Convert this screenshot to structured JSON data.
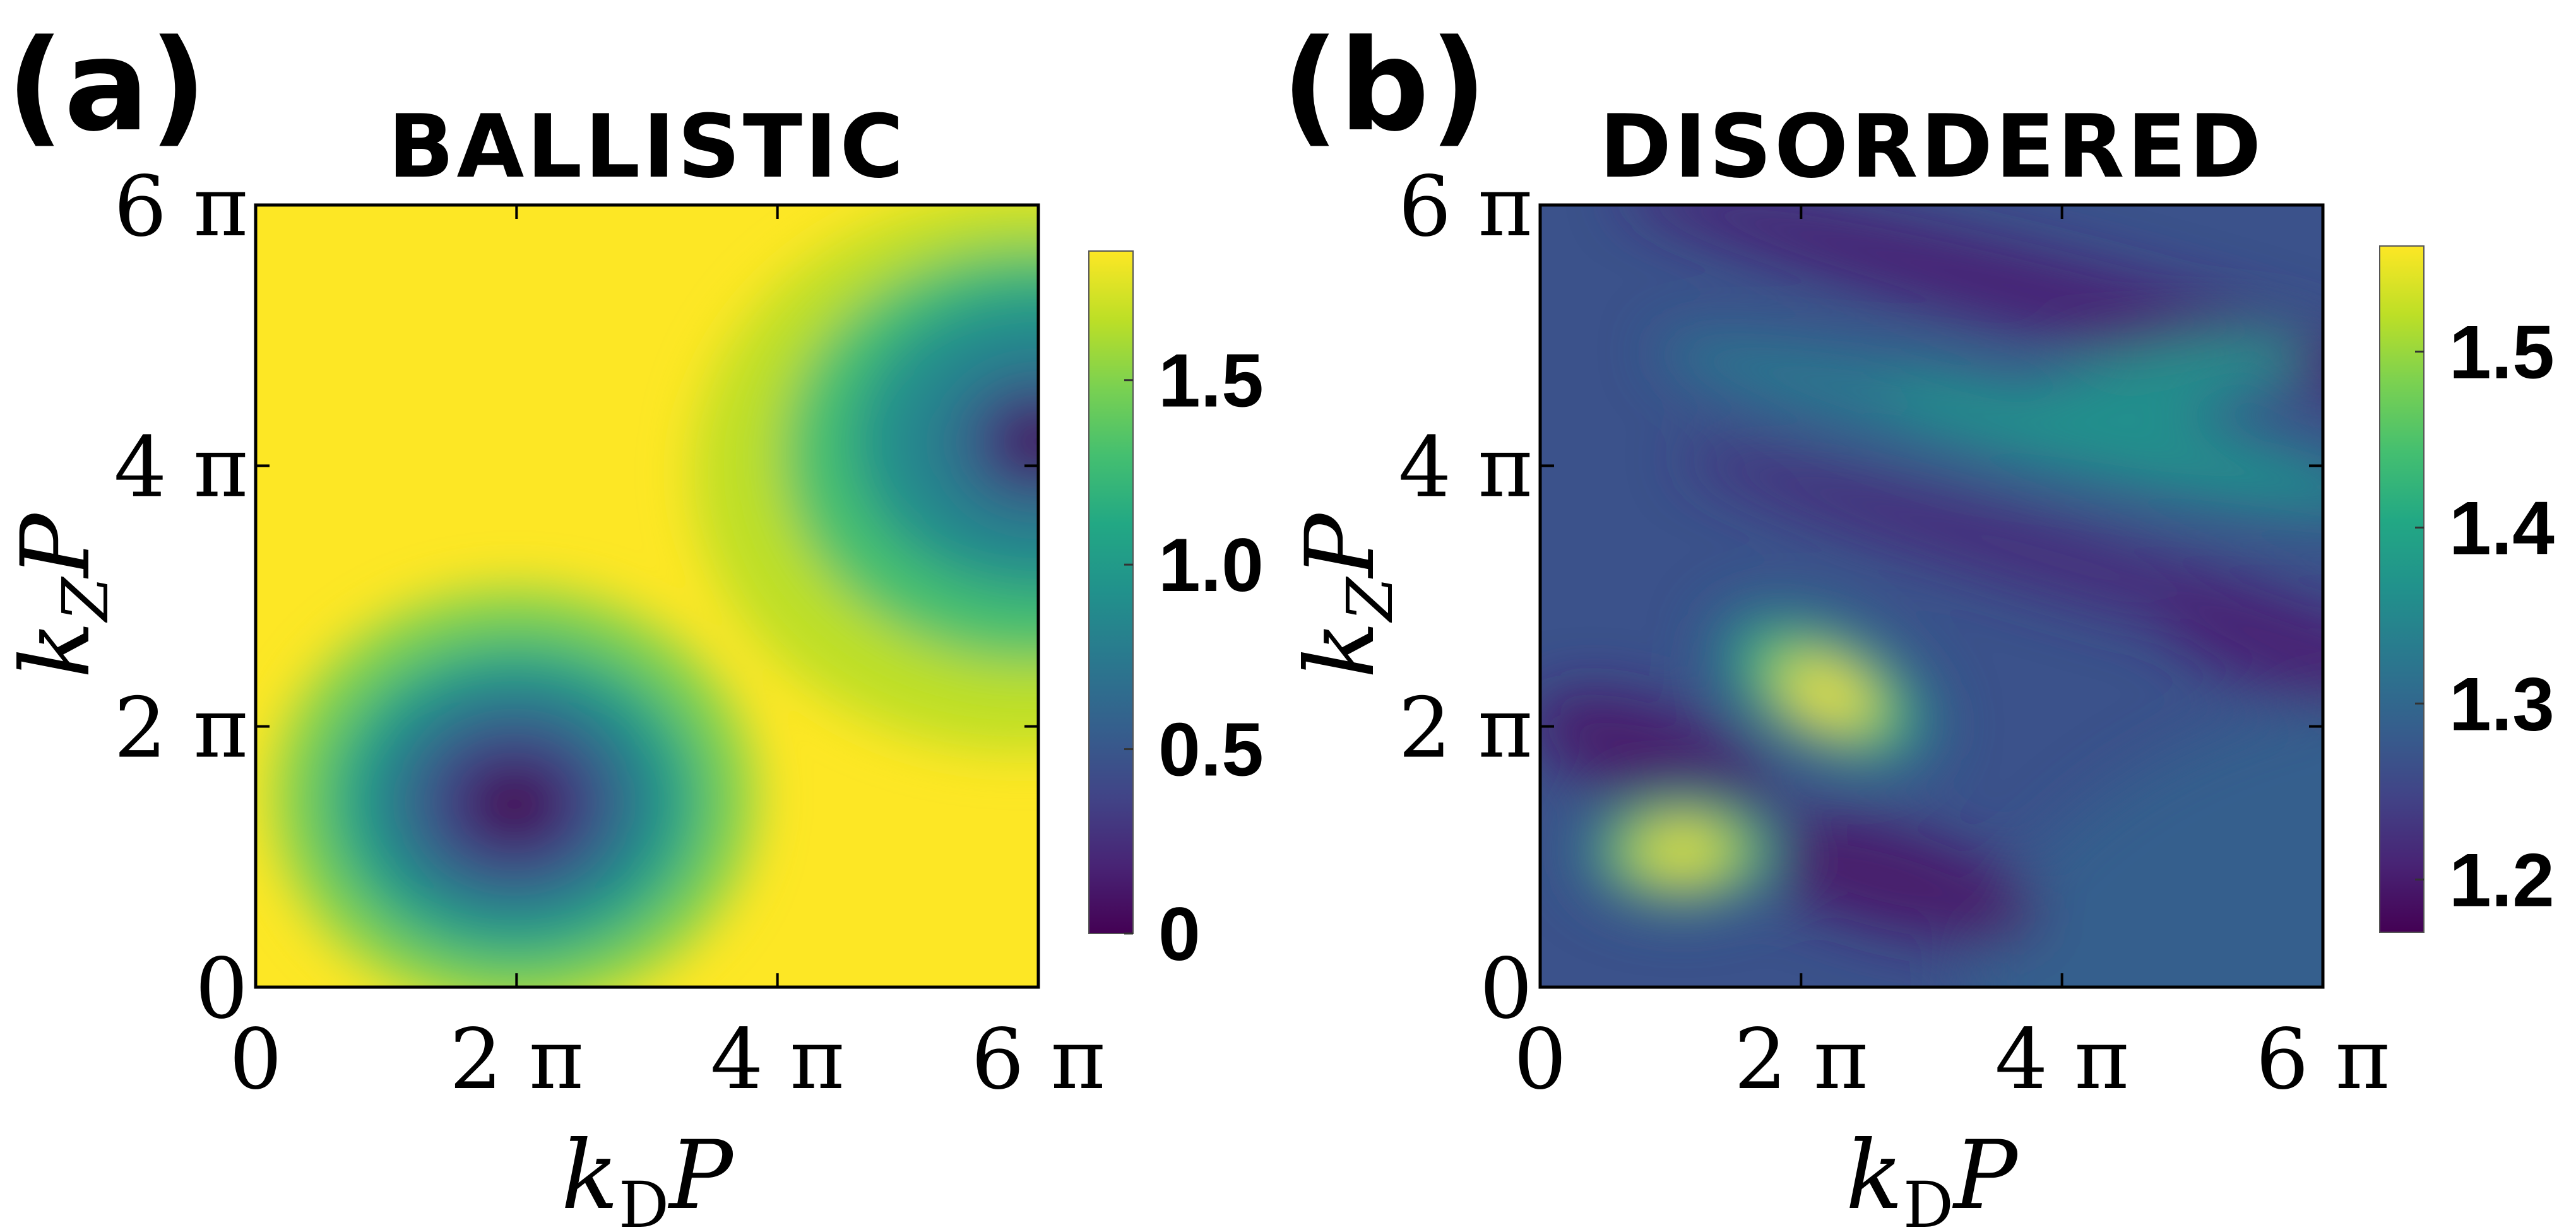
{
  "chart_data": [
    {
      "type": "heatmap",
      "panel_label": "(a)",
      "title": "BALLISTIC",
      "xlabel": {
        "base": "k",
        "sub": "D",
        "suffix": "P"
      },
      "ylabel": {
        "base": "k",
        "sub": "Z",
        "suffix": "P"
      },
      "xlim": [
        0,
        6
      ],
      "ylim": [
        0,
        6
      ],
      "x_unit": "π",
      "x_ticks": [
        0,
        2,
        4,
        6
      ],
      "y_ticks": [
        0,
        2,
        4,
        6
      ],
      "x_tick_labels": [
        "0",
        "2 π",
        "4 π",
        "6 π"
      ],
      "y_tick_labels": [
        "0",
        "2 π",
        "4 π",
        "6 π"
      ],
      "colormap": "viridis",
      "colorbar": {
        "range": [
          0,
          1.85
        ],
        "ticks": [
          0,
          0.5,
          1.0,
          1.5
        ],
        "tick_labels": [
          "0",
          "0.5",
          "1.0",
          "1.5"
        ]
      },
      "features": [
        {
          "kind": "minimum",
          "x": 2.0,
          "y": 1.4,
          "value": 0.0,
          "note": "dark well surrounded by teal ring"
        },
        {
          "kind": "minimum",
          "x": 6.0,
          "y": 4.2,
          "value": 0.05,
          "note": "dark region at right edge, inside teal band"
        },
        {
          "kind": "background",
          "value": 1.85,
          "note": "yellow plateau elsewhere"
        }
      ]
    },
    {
      "type": "heatmap",
      "panel_label": "(b)",
      "title": "DISORDERED",
      "xlabel": {
        "base": "k",
        "sub": "D",
        "suffix": "P"
      },
      "ylabel": {
        "base": "k",
        "sub": "Z",
        "suffix": "P"
      },
      "xlim": [
        0,
        6
      ],
      "ylim": [
        0,
        6
      ],
      "x_unit": "π",
      "x_ticks": [
        0,
        2,
        4,
        6
      ],
      "y_ticks": [
        0,
        2,
        4,
        6
      ],
      "x_tick_labels": [
        "0",
        "2 π",
        "4 π",
        "6 π"
      ],
      "y_tick_labels": [
        "0",
        "2 π",
        "4 π",
        "6 π"
      ],
      "colormap": "viridis",
      "colorbar": {
        "range": [
          1.17,
          1.56
        ],
        "ticks": [
          1.2,
          1.3,
          1.4,
          1.5
        ],
        "tick_labels": [
          "1.2",
          "1.3",
          "1.4",
          "1.5"
        ]
      },
      "features": [
        {
          "kind": "maximum",
          "x": 2.2,
          "y": 2.2,
          "value": 1.55,
          "note": "bright elongated lobe"
        },
        {
          "kind": "maximum",
          "x": 1.1,
          "y": 1.05,
          "value": 1.56,
          "note": "bright elliptical lobe"
        },
        {
          "kind": "ridge",
          "note": "teal diagonal band from upper-right to lower-left",
          "value": 1.42
        },
        {
          "kind": "trough",
          "note": "dark purple diagonal bands",
          "value": 1.18
        },
        {
          "kind": "background",
          "value": 1.27
        }
      ]
    }
  ]
}
